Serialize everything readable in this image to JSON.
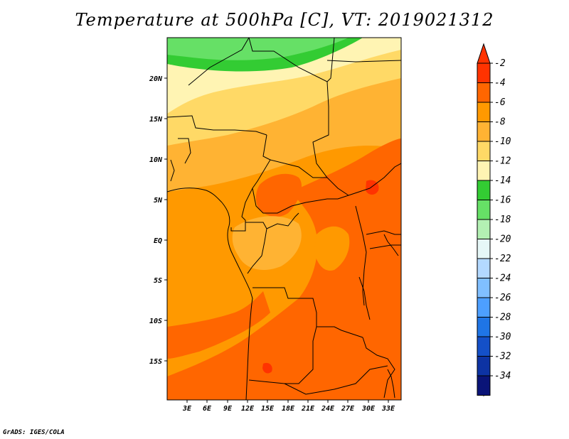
{
  "title": "Temperature at 500hPa [C], VT: 2019021312",
  "credit": "GrADS: IGES/COLA",
  "map": {
    "lat_labels": [
      "20N",
      "15N",
      "10N",
      "5N",
      "EQ",
      "5S",
      "10S",
      "15S"
    ],
    "lon_labels": [
      "3E",
      "6E",
      "9E",
      "12E",
      "15E",
      "18E",
      "21E",
      "24E",
      "27E",
      "30E",
      "33E"
    ]
  },
  "colorbar": {
    "labels": [
      "-2",
      "-4",
      "-6",
      "-8",
      "-10",
      "-12",
      "-14",
      "-16",
      "-18",
      "-20",
      "-22",
      "-24",
      "-26",
      "-28",
      "-30",
      "-32",
      "-34"
    ],
    "colors": [
      "#ff3300",
      "#ff6600",
      "#ff9900",
      "#ffb333",
      "#ffd966",
      "#fff4b3",
      "#33cc33",
      "#66e066",
      "#b3f0b3",
      "#e6f7f7",
      "#b3d9ff",
      "#80bfff",
      "#4d9fff",
      "#1f75e6",
      "#1450c8",
      "#0d33a3",
      "#0a1478"
    ],
    "top_color": "#ff3300",
    "bottom_color": "#dde6ff"
  }
}
